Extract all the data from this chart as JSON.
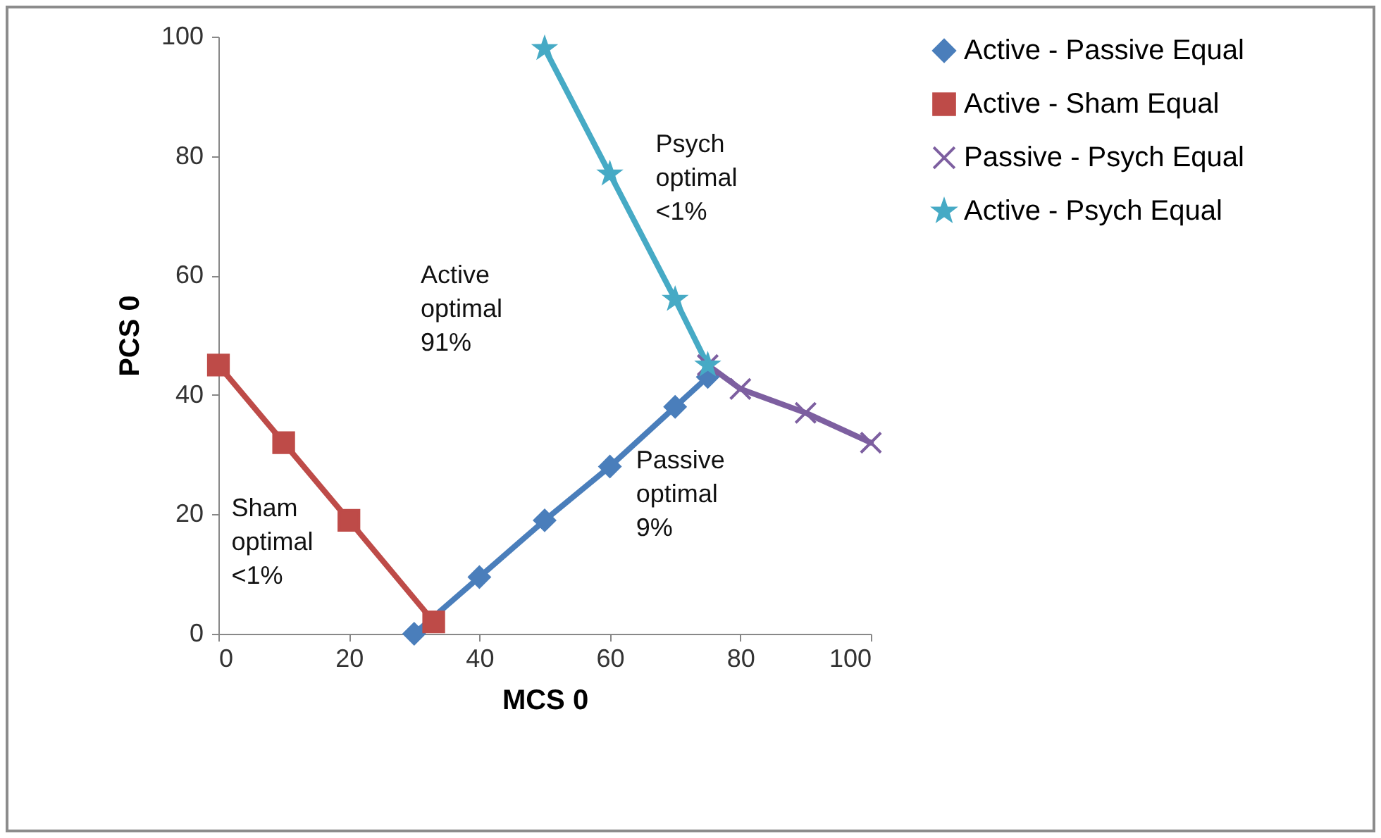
{
  "chart_data": {
    "type": "line",
    "xlabel": "MCS 0",
    "ylabel": "PCS 0",
    "xlim": [
      0,
      100
    ],
    "xticks": [
      0,
      20,
      40,
      60,
      80,
      100
    ],
    "ylim": [
      0,
      100
    ],
    "yticks": [
      0,
      20,
      40,
      60,
      80,
      100
    ],
    "grid": false,
    "legend": "right",
    "line_style": "solid",
    "annotations": [
      "Active\noptimal\n91%",
      "Psych\noptimal\n<1%",
      "Passive\noptimal\n9%",
      "Sham\noptimal\n<1%"
    ],
    "series": [
      {
        "name": "Active - Passive Equal",
        "color": "#4a7ebb",
        "marker": "diamond",
        "x": [
          30,
          40,
          50,
          60,
          70,
          75
        ],
        "values": [
          0,
          9.5,
          19,
          28,
          38,
          43
        ]
      },
      {
        "name": "Active - Sham Equal",
        "color": "#be4b48",
        "marker": "square",
        "x": [
          0,
          10,
          20,
          33
        ],
        "values": [
          45,
          32,
          19,
          2
        ]
      },
      {
        "name": "Passive - Psych Equal",
        "color": "#7d5fa0",
        "marker": "cross",
        "x": [
          75,
          80,
          90,
          100
        ],
        "values": [
          45,
          41,
          37,
          32
        ]
      },
      {
        "name": "Active - Psych Equal",
        "color": "#46aac5",
        "marker": "star",
        "x": [
          50,
          60,
          70,
          75
        ],
        "values": [
          98,
          77,
          56,
          45
        ]
      }
    ]
  }
}
